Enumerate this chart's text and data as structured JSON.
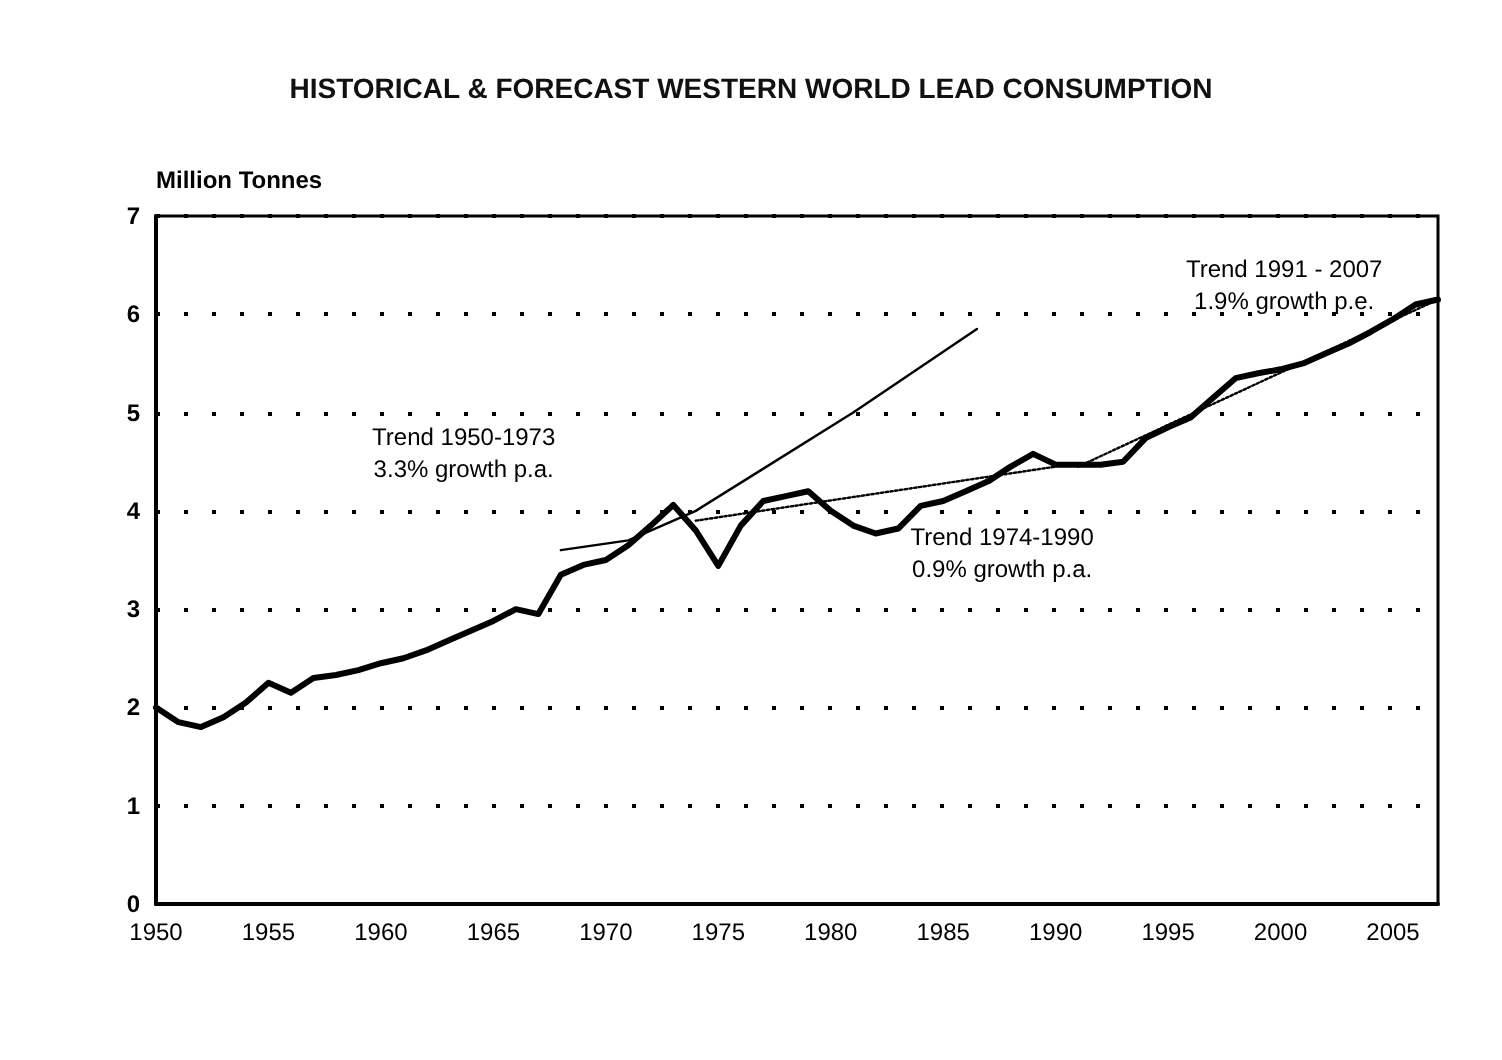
{
  "chart_data": {
    "type": "line",
    "title": "HISTORICAL & FORECAST WESTERN WORLD LEAD CONSUMPTION",
    "ylabel": "Million Tonnes",
    "x": [
      1950,
      1951,
      1952,
      1953,
      1954,
      1955,
      1956,
      1957,
      1958,
      1959,
      1960,
      1961,
      1962,
      1963,
      1964,
      1965,
      1966,
      1967,
      1968,
      1969,
      1970,
      1971,
      1972,
      1973,
      1974,
      1975,
      1976,
      1977,
      1978,
      1979,
      1980,
      1981,
      1982,
      1983,
      1984,
      1985,
      1986,
      1987,
      1988,
      1989,
      1990,
      1991,
      1992,
      1993,
      1994,
      1995,
      1996,
      1997,
      1998,
      1999,
      2000,
      2001,
      2002,
      2003,
      2004,
      2005,
      2006,
      2007
    ],
    "series": [
      {
        "color": "#000000",
        "values": [
          2.0,
          1.85,
          1.8,
          1.9,
          2.05,
          2.25,
          2.15,
          2.3,
          2.33,
          2.38,
          2.45,
          2.5,
          2.58,
          2.68,
          2.78,
          2.88,
          3.0,
          2.95,
          3.35,
          3.45,
          3.5,
          3.65,
          3.85,
          4.06,
          3.8,
          3.44,
          3.85,
          4.1,
          4.15,
          4.2,
          4.0,
          3.85,
          3.77,
          3.82,
          4.05,
          4.1,
          4.2,
          4.3,
          4.45,
          4.58,
          4.47,
          4.47,
          4.47,
          4.5,
          4.74,
          4.85,
          4.95,
          5.15,
          5.35,
          5.4,
          5.44,
          5.5,
          5.6,
          5.7,
          5.82,
          5.95,
          6.1,
          6.15
        ]
      },
      {
        "color": "#000000",
        "line_style": "solid",
        "x": [
          1968,
          1971,
          1974,
          1981,
          1986.5
        ],
        "values": [
          3.6,
          3.7,
          4.0,
          5.0,
          5.85
        ]
      },
      {
        "color": "#000000",
        "line_style": "dotted",
        "x": [
          1974,
          1990
        ],
        "values": [
          3.9,
          4.45
        ]
      },
      {
        "color": "#000000",
        "line_style": "dotted",
        "x": [
          1991,
          2007
        ],
        "values": [
          4.45,
          6.15
        ]
      }
    ],
    "xlim": [
      1950,
      2007
    ],
    "xticks": [
      1950,
      1955,
      1960,
      1965,
      1970,
      1975,
      1980,
      1985,
      1990,
      1995,
      2000,
      2005
    ],
    "ylim": [
      0,
      7
    ],
    "yticks": [
      0,
      1,
      2,
      3,
      4,
      5,
      6,
      7
    ],
    "grid": "y",
    "marker": "none",
    "line_style": "solid",
    "annotations": [
      "Trend 1950-1973\n3.3% growth p.a.",
      "Trend 1974-1990\n0.9% growth p.a.",
      "Trend 1991 - 2007\n1.9% growth p.e."
    ]
  }
}
